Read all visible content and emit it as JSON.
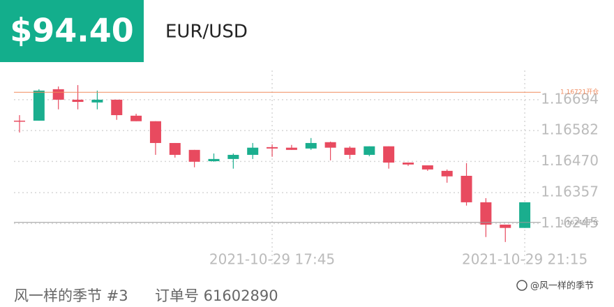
{
  "header": {
    "price": "$94.40",
    "symbol": "EUR/USD"
  },
  "chart_data": {
    "type": "candlestick",
    "categories": [
      null,
      null,
      null,
      null,
      null,
      null,
      null,
      null,
      null,
      null,
      null,
      null,
      null,
      "2021-10-29 17:45",
      null,
      null,
      null,
      null,
      null,
      null,
      null,
      null,
      null,
      null,
      null,
      null,
      "2021-10-29 21:15"
    ],
    "open": [
      1.16618,
      1.16618,
      1.16732,
      1.16694,
      1.16684,
      1.16694,
      1.16636,
      1.16616,
      1.16537,
      1.16512,
      1.16471,
      1.16479,
      1.16494,
      1.16522,
      1.1652,
      1.16517,
      1.1654,
      1.1652,
      1.16494,
      1.16525,
      1.16466,
      1.16456,
      1.16436,
      1.16418,
      1.16322,
      1.16241,
      1.16229
    ],
    "high": [
      1.16638,
      1.16732,
      1.16742,
      1.16747,
      1.16727,
      1.16694,
      1.16643,
      1.16616,
      1.16537,
      1.16512,
      1.16499,
      1.16499,
      1.16537,
      1.16532,
      1.1653,
      1.16555,
      1.16542,
      1.16525,
      1.16525,
      1.16525,
      1.16466,
      1.16456,
      1.16441,
      1.16464,
      1.16337,
      1.16241,
      1.16322
    ],
    "low": [
      1.16575,
      1.16618,
      1.16659,
      1.16659,
      1.16659,
      1.16621,
      1.16616,
      1.16494,
      1.16484,
      1.16449,
      1.16469,
      1.16444,
      1.16479,
      1.16487,
      1.16512,
      1.16512,
      1.16474,
      1.16479,
      1.16489,
      1.16444,
      1.16454,
      1.16436,
      1.16393,
      1.1631,
      1.16196,
      1.16178,
      1.16229
    ],
    "close": [
      1.16618,
      1.16727,
      1.16694,
      1.16686,
      1.16694,
      1.16638,
      1.16616,
      1.16537,
      1.16494,
      1.16469,
      1.16479,
      1.16494,
      1.1652,
      1.16517,
      1.16512,
      1.16537,
      1.1652,
      1.16494,
      1.16525,
      1.16466,
      1.16459,
      1.16441,
      1.16416,
      1.16322,
      1.16241,
      1.16229,
      1.16322
    ],
    "up_color": "#1aae8e",
    "down_color": "#e84a5f",
    "ylim": [
      1.1617,
      1.168
    ],
    "yticks": [
      1.16245,
      1.16357,
      {
        "value": 1.1647,
        "label": "1.16470"
      },
      1.16582,
      1.16694
    ],
    "grid": true,
    "reference_lines": [
      {
        "value": 1.16721,
        "label": "1.16721开仓",
        "color": "#f08a5d"
      },
      {
        "value": 1.16249,
        "label": "1.16249平仓",
        "color": "#9a9a9a"
      }
    ]
  },
  "footer": {
    "user": "风一样的季节 #3",
    "order": "订单号 61602890",
    "watermark": "@风一样的季节"
  }
}
